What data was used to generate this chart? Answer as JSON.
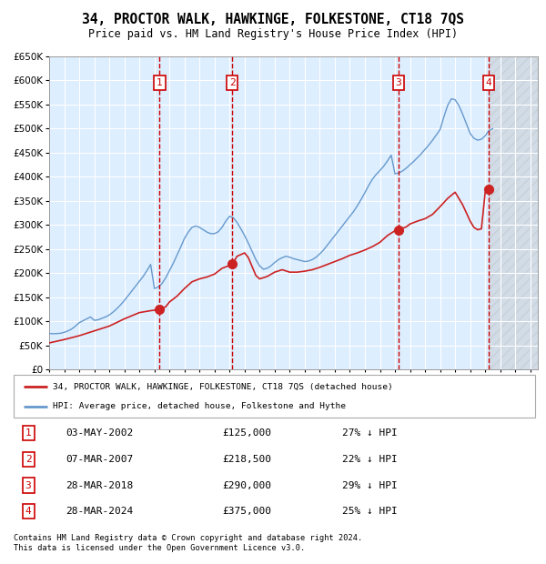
{
  "title": "34, PROCTOR WALK, HAWKINGE, FOLKESTONE, CT18 7QS",
  "subtitle": "Price paid vs. HM Land Registry's House Price Index (HPI)",
  "legend_line1": "34, PROCTOR WALK, HAWKINGE, FOLKESTONE, CT18 7QS (detached house)",
  "legend_line2": "HPI: Average price, detached house, Folkestone and Hythe",
  "footnote1": "Contains HM Land Registry data © Crown copyright and database right 2024.",
  "footnote2": "This data is licensed under the Open Government Licence v3.0.",
  "hpi_color": "#6699cc",
  "price_color": "#cc2222",
  "plot_bg": "#ddeeff",
  "dashed_color": "#cc0000",
  "ylim": [
    0,
    650000
  ],
  "ytick_step": 50000,
  "xlim_start": 1995.0,
  "xlim_end": 2027.5,
  "transactions": [
    {
      "num": 1,
      "date": "03-MAY-2002",
      "year": 2002.35,
      "price": 125000,
      "pct": "27%",
      "dir": "↓"
    },
    {
      "num": 2,
      "date": "07-MAR-2007",
      "year": 2007.18,
      "price": 218500,
      "pct": "22%",
      "dir": "↓"
    },
    {
      "num": 3,
      "date": "28-MAR-2018",
      "year": 2018.24,
      "price": 290000,
      "pct": "29%",
      "dir": "↓"
    },
    {
      "num": 4,
      "date": "28-MAR-2024",
      "year": 2024.24,
      "price": 375000,
      "pct": "25%",
      "dir": "↓"
    }
  ],
  "hpi_years": [
    1995.0,
    1995.25,
    1995.5,
    1995.75,
    1996.0,
    1996.25,
    1996.5,
    1996.75,
    1997.0,
    1997.25,
    1997.5,
    1997.75,
    1998.0,
    1998.25,
    1998.5,
    1998.75,
    1999.0,
    1999.25,
    1999.5,
    1999.75,
    2000.0,
    2000.25,
    2000.5,
    2000.75,
    2001.0,
    2001.25,
    2001.5,
    2001.75,
    2002.0,
    2002.25,
    2002.5,
    2002.75,
    2003.0,
    2003.25,
    2003.5,
    2003.75,
    2004.0,
    2004.25,
    2004.5,
    2004.75,
    2005.0,
    2005.25,
    2005.5,
    2005.75,
    2006.0,
    2006.25,
    2006.5,
    2006.75,
    2007.0,
    2007.25,
    2007.5,
    2007.75,
    2008.0,
    2008.25,
    2008.5,
    2008.75,
    2009.0,
    2009.25,
    2009.5,
    2009.75,
    2010.0,
    2010.25,
    2010.5,
    2010.75,
    2011.0,
    2011.25,
    2011.5,
    2011.75,
    2012.0,
    2012.25,
    2012.5,
    2012.75,
    2013.0,
    2013.25,
    2013.5,
    2013.75,
    2014.0,
    2014.25,
    2014.5,
    2014.75,
    2015.0,
    2015.25,
    2015.5,
    2015.75,
    2016.0,
    2016.25,
    2016.5,
    2016.75,
    2017.0,
    2017.25,
    2017.5,
    2017.75,
    2018.0,
    2018.25,
    2018.5,
    2018.75,
    2019.0,
    2019.25,
    2019.5,
    2019.75,
    2020.0,
    2020.25,
    2020.5,
    2020.75,
    2021.0,
    2021.25,
    2021.5,
    2021.75,
    2022.0,
    2022.25,
    2022.5,
    2022.75,
    2023.0,
    2023.25,
    2023.5,
    2023.75,
    2024.0,
    2024.25,
    2024.5
  ],
  "hpi_values": [
    75000,
    74000,
    74500,
    75000,
    77000,
    80000,
    84000,
    90000,
    97000,
    101000,
    105000,
    109000,
    102000,
    103000,
    106000,
    109000,
    113000,
    119000,
    126000,
    134000,
    143000,
    153000,
    163000,
    173000,
    183000,
    193000,
    205000,
    218000,
    168000,
    171000,
    178000,
    190000,
    205000,
    220000,
    237000,
    254000,
    272000,
    285000,
    295000,
    298000,
    295000,
    290000,
    285000,
    282000,
    282000,
    286000,
    295000,
    308000,
    318000,
    315000,
    305000,
    292000,
    278000,
    262000,
    245000,
    228000,
    215000,
    208000,
    210000,
    215000,
    222000,
    228000,
    232000,
    235000,
    233000,
    230000,
    228000,
    226000,
    224000,
    225000,
    228000,
    233000,
    240000,
    248000,
    258000,
    268000,
    278000,
    288000,
    298000,
    308000,
    318000,
    328000,
    340000,
    353000,
    367000,
    382000,
    395000,
    405000,
    413000,
    422000,
    433000,
    445000,
    406000,
    408000,
    412000,
    418000,
    425000,
    432000,
    440000,
    448000,
    457000,
    466000,
    476000,
    487000,
    498000,
    524000,
    548000,
    562000,
    560000,
    548000,
    530000,
    510000,
    490000,
    480000,
    476000,
    478000,
    485000,
    496000,
    500000
  ],
  "price_years": [
    1995.0,
    1996.0,
    1997.0,
    1998.0,
    1999.0,
    2000.0,
    2001.0,
    2001.75,
    2002.0,
    2002.35,
    2002.75,
    2003.0,
    2003.5,
    2004.0,
    2004.5,
    2005.0,
    2005.5,
    2006.0,
    2006.5,
    2007.0,
    2007.18,
    2007.5,
    2008.0,
    2008.25,
    2008.75,
    2009.0,
    2009.5,
    2010.0,
    2010.5,
    2011.0,
    2011.5,
    2012.0,
    2012.5,
    2013.0,
    2013.5,
    2014.0,
    2014.5,
    2015.0,
    2015.5,
    2016.0,
    2016.5,
    2017.0,
    2017.5,
    2018.0,
    2018.24,
    2018.75,
    2019.0,
    2019.5,
    2020.0,
    2020.5,
    2021.0,
    2021.5,
    2022.0,
    2022.5,
    2023.0,
    2023.25,
    2023.5,
    2023.75,
    2024.0,
    2024.24,
    2024.5
  ],
  "price_values": [
    55000,
    62000,
    70000,
    80000,
    90000,
    105000,
    118000,
    122000,
    123000,
    125000,
    130000,
    140000,
    152000,
    168000,
    182000,
    188000,
    192000,
    198000,
    210000,
    216000,
    218500,
    235000,
    242000,
    232000,
    195000,
    188000,
    193000,
    202000,
    207000,
    202000,
    202000,
    204000,
    207000,
    212000,
    218000,
    224000,
    230000,
    237000,
    242000,
    248000,
    255000,
    264000,
    278000,
    288000,
    290000,
    296000,
    302000,
    308000,
    313000,
    322000,
    338000,
    355000,
    368000,
    342000,
    308000,
    295000,
    290000,
    292000,
    368000,
    375000,
    370000
  ]
}
